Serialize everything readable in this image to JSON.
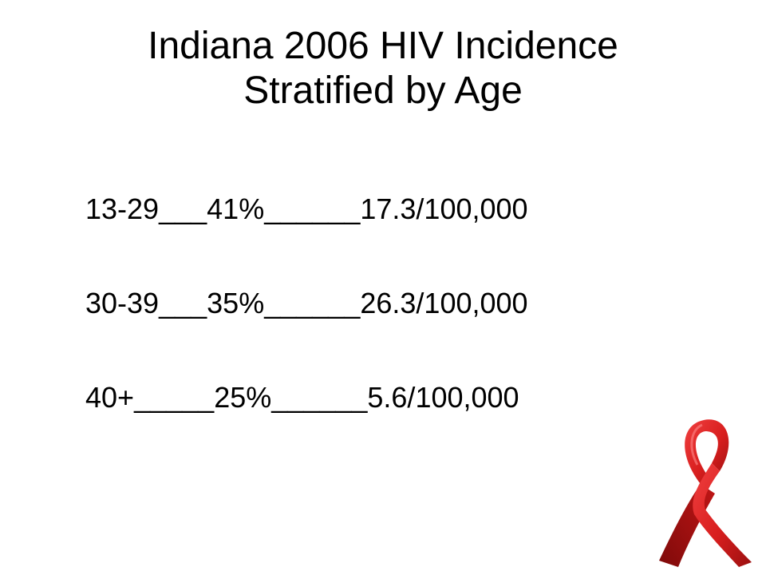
{
  "title": {
    "line1": "Indiana 2006 HIV Incidence",
    "line2": "Stratified by Age"
  },
  "rows": [
    {
      "age": "13-29",
      "sep1": "___",
      "percent": "41%",
      "sep2": "______",
      "rate": "17.3/100,000"
    },
    {
      "age": "30-39",
      "sep1": "___",
      "percent": "35%",
      "sep2": "______",
      "rate": "26.3/100,000"
    },
    {
      "age": "40+",
      "sep1": "_____",
      "percent": "25%",
      "sep2": "______",
      "rate": "5.6/100,000"
    }
  ],
  "ribbon": {
    "icon": "red-ribbon-icon",
    "color": "#d81e1e",
    "shadow": "#8e0d0d"
  }
}
